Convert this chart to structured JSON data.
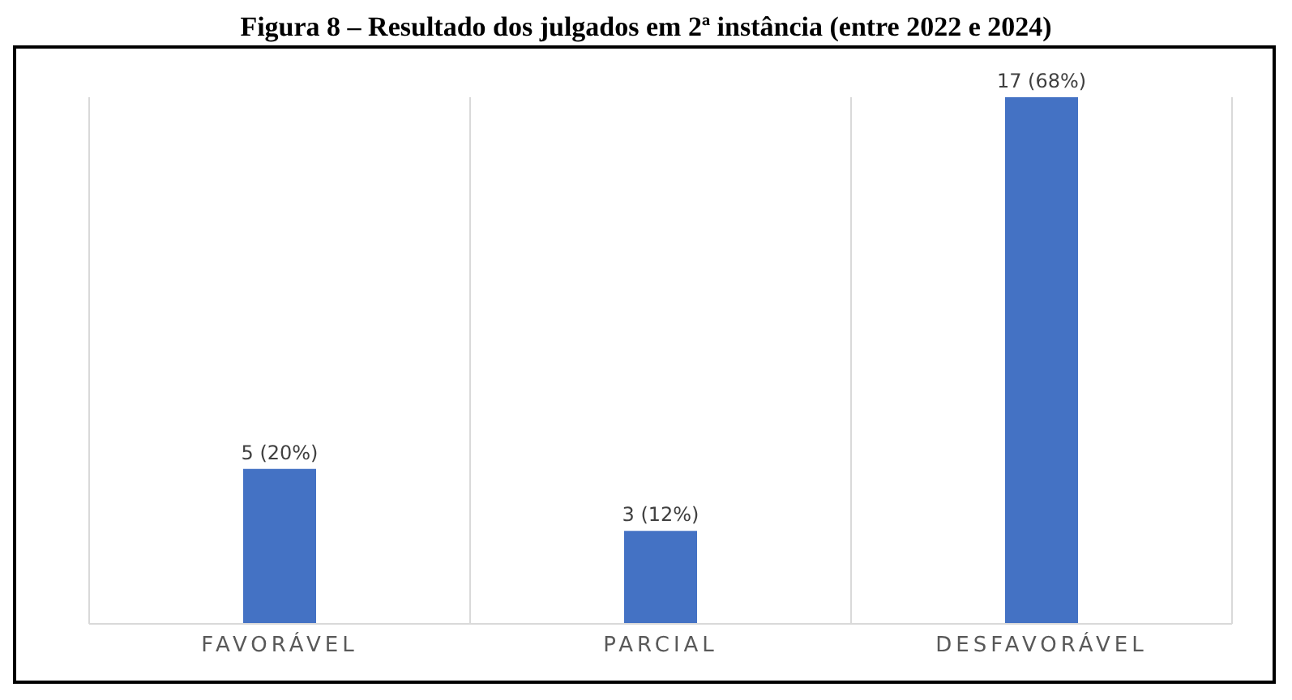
{
  "chart_data": {
    "type": "bar",
    "title": "Figura 8 – Resultado dos julgados em 2ª instância (entre 2022 e 2024)",
    "categories": [
      "FAVORÁVEL",
      "PARCIAL",
      "DESFAVORÁVEL"
    ],
    "values": [
      5,
      3,
      17
    ],
    "value_labels": [
      "5 (20%)",
      "3 (12%)",
      "17 (68%)"
    ],
    "color": "#4472c4",
    "grid": "x",
    "tick_labels": "x"
  }
}
